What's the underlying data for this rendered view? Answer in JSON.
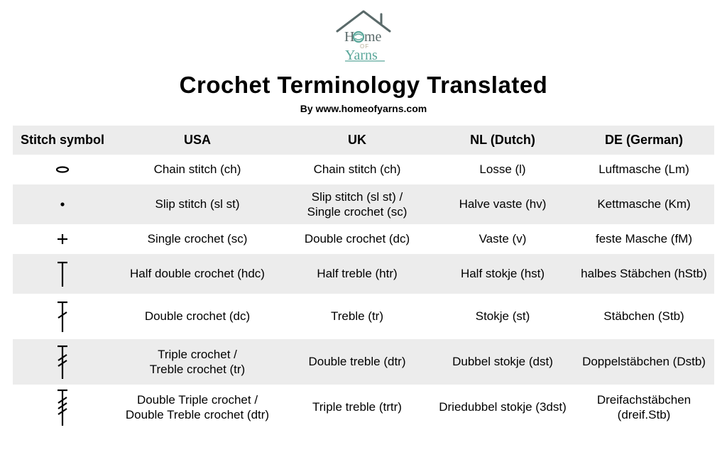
{
  "logo": {
    "line1": "Home",
    "line2": "OF",
    "line3": "Yarns",
    "roof_color": "#5a6a6a",
    "home_color": "#5a6a6a",
    "of_color": "#b8b19a",
    "yarns_color": "#5aa79a",
    "ball_color": "#5aa79a"
  },
  "title": "Crochet Terminology Translated",
  "byline": "By www.homeofyarns.com",
  "table": {
    "header_bg": "#ececec",
    "row_alt_bg": "#ececec",
    "columns": [
      "Stitch symbol",
      "USA",
      "UK",
      "NL (Dutch)",
      "DE (German)"
    ],
    "rows": [
      {
        "symbol": "chain",
        "usa": "Chain stitch (ch)",
        "uk": "Chain stitch (ch)",
        "nl": "Losse (l)",
        "de": "Luftmasche (Lm)",
        "height": "short"
      },
      {
        "symbol": "slip",
        "usa": "Slip stitch (sl st)",
        "uk": "Slip stitch (sl st) /\nSingle crochet (sc)",
        "nl": "Halve vaste (hv)",
        "de": "Kettmasche (Km)",
        "height": "mid"
      },
      {
        "symbol": "single",
        "usa": "Single crochet (sc)",
        "uk": "Double crochet (dc)",
        "nl": "Vaste (v)",
        "de": "feste Masche (fM)",
        "height": "short"
      },
      {
        "symbol": "halfdouble",
        "usa": "Half double crochet (hdc)",
        "uk": "Half treble (htr)",
        "nl": "Half stokje (hst)",
        "de": "halbes Stäbchen (hStb)",
        "height": "mid"
      },
      {
        "symbol": "double",
        "usa": "Double crochet (dc)",
        "uk": "Treble (tr)",
        "nl": "Stokje (st)",
        "de": "Stäbchen (Stb)",
        "height": "tall"
      },
      {
        "symbol": "triple",
        "usa": "Triple crochet /\nTreble crochet (tr)",
        "uk": "Double treble (dtr)",
        "nl": "Dubbel stokje (dst)",
        "de": "Doppelstäbchen (Dstb)",
        "height": "tall"
      },
      {
        "symbol": "doubletriple",
        "usa": "Double Triple crochet /\nDouble Treble crochet (dtr)",
        "uk": "Triple treble (trtr)",
        "nl": "Driedubbel stokje (3dst)",
        "de": "Dreifachstäbchen\n(dreif.Stb)",
        "height": "tall"
      }
    ]
  }
}
